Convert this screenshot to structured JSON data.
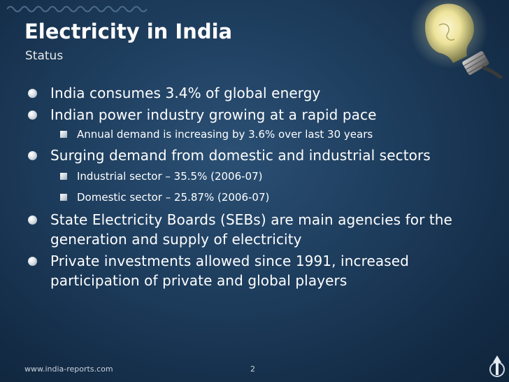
{
  "slide": {
    "title": "Electricity in India",
    "subtitle": "Status",
    "bullets": [
      {
        "text": "India consumes 3.4% of global energy"
      },
      {
        "text": "Indian power industry growing at a rapid pace"
      },
      {
        "text": "Annual demand is increasing by 3.6% over last 30 years"
      },
      {
        "text": "Surging demand from domestic and industrial sectors"
      },
      {
        "text": "Industrial sector – 35.5% (2006-07)"
      },
      {
        "text": "Domestic sector – 25.87% (2006-07)"
      },
      {
        "text": "State Electricity Boards (SEBs) are main agencies for the generation and supply of electricity"
      },
      {
        "text": "Private investments allowed since 1991, increased participation of private and global players"
      }
    ],
    "footer": {
      "website": "www.india-reports.com",
      "page_number": "2"
    }
  },
  "icons": {
    "decoration": "wave-line-icon",
    "bulb": "light-bulb-icon",
    "logo": "arrow-logo-icon"
  },
  "colors": {
    "background": "#1d3c5c",
    "text": "#ffffff",
    "bulb_glow": "#f2e9a0"
  }
}
